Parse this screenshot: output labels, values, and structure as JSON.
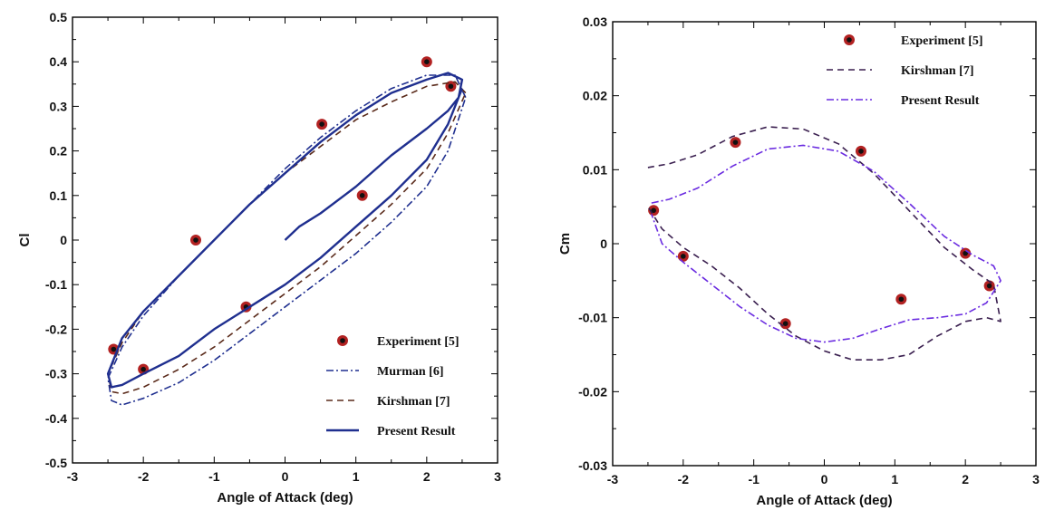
{
  "chart_data": [
    {
      "type": "line",
      "xlabel": "Angle of Attack (deg)",
      "ylabel": "Cl",
      "xlim": [
        -3,
        3
      ],
      "ylim": [
        -0.5,
        0.5
      ],
      "xticks": [
        "-3",
        "-2",
        "-1",
        "0",
        "1",
        "2",
        "3"
      ],
      "yticks": [
        "0.5",
        "0.4",
        "0.3",
        "0.2",
        "0.1",
        "0",
        "-0.1",
        "-0.2",
        "-0.3",
        "-0.4",
        "-0.5"
      ],
      "legend_position": "bottom-right",
      "series": [
        {
          "name": "Experiment [5]",
          "style": "markers",
          "color": "#b22222",
          "x": [
            2.0,
            2.34,
            0.52,
            1.09,
            -1.26,
            -0.55,
            -2.42,
            -2.0
          ],
          "y": [
            0.4,
            0.345,
            0.26,
            0.1,
            0.0,
            -0.15,
            -0.245,
            -0.29
          ]
        },
        {
          "name": "Murman [6]",
          "style": "dash-dot",
          "color": "#1f2f8f",
          "x": [
            2.55,
            2.4,
            2.0,
            1.5,
            1.0,
            0.5,
            0.0,
            -0.5,
            -1.0,
            -1.5,
            -2.0,
            -2.3,
            -2.5,
            -2.45,
            -2.3,
            -2.0,
            -1.5,
            -1.0,
            -0.5,
            0.0,
            0.5,
            1.0,
            1.5,
            2.0,
            2.3,
            2.55
          ],
          "y": [
            0.32,
            0.37,
            0.37,
            0.34,
            0.29,
            0.23,
            0.16,
            0.08,
            0.0,
            -0.08,
            -0.17,
            -0.24,
            -0.31,
            -0.36,
            -0.37,
            -0.355,
            -0.32,
            -0.27,
            -0.21,
            -0.15,
            -0.09,
            -0.03,
            0.04,
            0.12,
            0.2,
            0.32
          ]
        },
        {
          "name": "Kirshman [7]",
          "style": "dashed",
          "color": "#5a2a1a",
          "x": [
            2.55,
            2.4,
            2.0,
            1.5,
            1.0,
            0.5,
            0.0,
            -0.5,
            -1.0,
            -1.5,
            -2.0,
            -2.3,
            -2.5,
            -2.45,
            -2.3,
            -2.0,
            -1.5,
            -1.0,
            -0.5,
            0.0,
            0.5,
            1.0,
            1.5,
            2.0,
            2.3,
            2.55
          ],
          "y": [
            0.33,
            0.355,
            0.345,
            0.31,
            0.27,
            0.21,
            0.15,
            0.08,
            0.0,
            -0.08,
            -0.16,
            -0.23,
            -0.3,
            -0.34,
            -0.345,
            -0.33,
            -0.29,
            -0.24,
            -0.18,
            -0.12,
            -0.06,
            0.01,
            0.08,
            0.16,
            0.24,
            0.33
          ]
        },
        {
          "name": "Present Result",
          "style": "solid",
          "color": "#1f2f8f",
          "x": [
            0.0,
            0.2,
            0.5,
            1.0,
            1.5,
            2.0,
            2.3,
            2.45,
            2.5,
            2.3,
            2.0,
            1.5,
            1.0,
            0.5,
            0.0,
            -0.5,
            -1.0,
            -1.5,
            -2.0,
            -2.3,
            -2.5,
            -2.45,
            -2.3,
            -2.0,
            -1.5,
            -1.0,
            -0.5,
            0.0,
            0.5,
            1.0,
            1.5,
            2.0,
            2.3,
            2.5
          ],
          "y": [
            0.0,
            0.03,
            0.06,
            0.12,
            0.19,
            0.25,
            0.29,
            0.32,
            0.36,
            0.375,
            0.36,
            0.33,
            0.28,
            0.22,
            0.15,
            0.08,
            0.0,
            -0.08,
            -0.16,
            -0.22,
            -0.3,
            -0.33,
            -0.325,
            -0.3,
            -0.26,
            -0.2,
            -0.15,
            -0.1,
            -0.04,
            0.03,
            0.1,
            0.18,
            0.26,
            0.34
          ]
        }
      ]
    },
    {
      "type": "line",
      "xlabel": "Angle of Attack (deg)",
      "ylabel": "Cm",
      "xlim": [
        -3,
        3
      ],
      "ylim": [
        -0.03,
        0.03
      ],
      "xticks": [
        "-3",
        "-2",
        "-1",
        "0",
        "1",
        "2",
        "3"
      ],
      "yticks": [
        "0.03",
        "0.02",
        "0.01",
        "0",
        "-0.01",
        "-0.02",
        "-0.03"
      ],
      "legend_position": "top-right",
      "series": [
        {
          "name": "Experiment [5]",
          "style": "markers",
          "color": "#b22222",
          "x": [
            -1.26,
            0.52,
            -2.42,
            -2.0,
            2.0,
            2.34,
            1.09,
            -0.55
          ],
          "y": [
            0.0137,
            0.0125,
            0.0045,
            -0.0017,
            -0.0013,
            -0.0057,
            -0.0075,
            -0.0108
          ]
        },
        {
          "name": "Kirshman [7]",
          "style": "dashed",
          "color": "#3a1f4f",
          "x": [
            -2.5,
            -2.2,
            -1.8,
            -1.3,
            -0.8,
            -0.3,
            0.2,
            0.7,
            1.2,
            1.7,
            2.1,
            2.4,
            2.5,
            2.3,
            2.0,
            1.6,
            1.2,
            0.8,
            0.4,
            0.0,
            -0.4,
            -0.8,
            -1.2,
            -1.6,
            -2.0,
            -2.3,
            -2.5
          ],
          "y": [
            0.0103,
            0.0108,
            0.012,
            0.0145,
            0.0158,
            0.0155,
            0.0135,
            0.0095,
            0.0045,
            -0.0005,
            -0.0035,
            -0.0055,
            -0.0105,
            -0.01,
            -0.0105,
            -0.0125,
            -0.015,
            -0.0157,
            -0.0157,
            -0.0145,
            -0.0125,
            -0.0095,
            -0.006,
            -0.003,
            -0.0005,
            0.002,
            0.005
          ]
        },
        {
          "name": "Present Result",
          "style": "dash-dot",
          "color": "#6a2be0",
          "x": [
            -2.45,
            -2.2,
            -1.8,
            -1.3,
            -0.8,
            -0.3,
            0.2,
            0.7,
            1.2,
            1.7,
            2.1,
            2.4,
            2.5,
            2.3,
            2.0,
            1.6,
            1.2,
            0.8,
            0.4,
            0.0,
            -0.4,
            -0.8,
            -1.2,
            -1.6,
            -2.0,
            -2.3,
            -2.45
          ],
          "y": [
            0.0055,
            0.006,
            0.0075,
            0.0105,
            0.0128,
            0.0133,
            0.0125,
            0.0098,
            0.0055,
            0.001,
            -0.0015,
            -0.003,
            -0.005,
            -0.008,
            -0.0095,
            -0.01,
            -0.0103,
            -0.0115,
            -0.0128,
            -0.0133,
            -0.0128,
            -0.011,
            -0.0085,
            -0.0055,
            -0.0025,
            0.0,
            0.004
          ]
        }
      ]
    }
  ]
}
